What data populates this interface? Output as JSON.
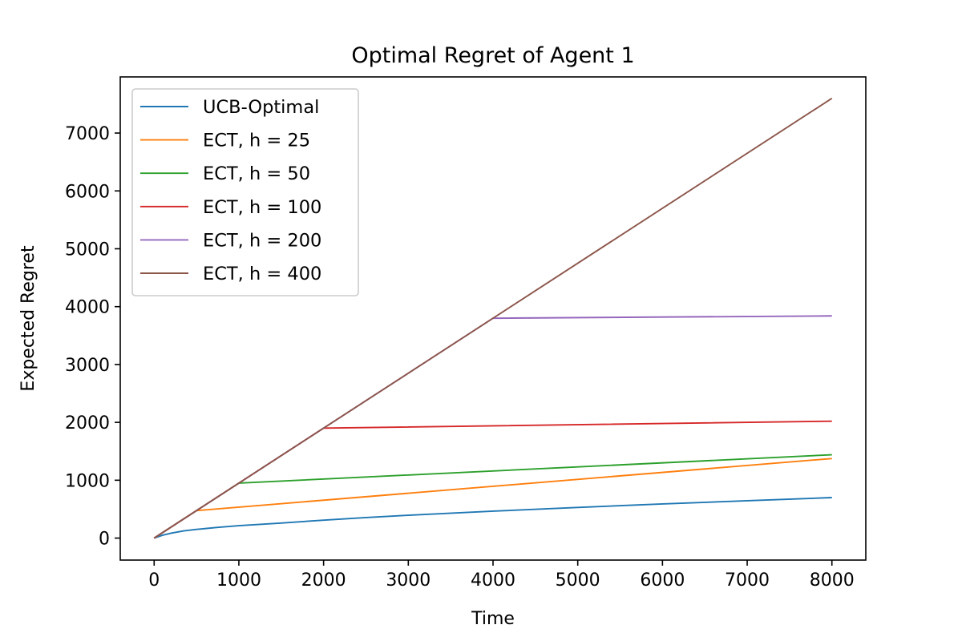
{
  "chart_data": {
    "type": "line",
    "title": "Optimal Regret of Agent 1",
    "xlabel": "Time",
    "ylabel": "Expected Regret",
    "xlim": [
      -400,
      8400
    ],
    "ylim": [
      -380,
      7970
    ],
    "xticks": [
      0,
      1000,
      2000,
      3000,
      4000,
      5000,
      6000,
      7000,
      8000
    ],
    "yticks": [
      0,
      1000,
      2000,
      3000,
      4000,
      5000,
      6000,
      7000
    ],
    "xtick_labels": [
      "0",
      "1000",
      "2000",
      "3000",
      "4000",
      "5000",
      "6000",
      "7000",
      "8000"
    ],
    "ytick_labels": [
      "0",
      "1000",
      "2000",
      "3000",
      "4000",
      "5000",
      "6000",
      "7000"
    ],
    "grid": false,
    "legend_position": "top-left",
    "series": [
      {
        "name": "UCB-Optimal",
        "color": "#1f77b4",
        "x": [
          0,
          100,
          200,
          350,
          500,
          750,
          1000,
          1500,
          2000,
          2500,
          3000,
          4000,
          5000,
          6000,
          7000,
          8000
        ],
        "y": [
          0,
          50,
          85,
          125,
          150,
          185,
          215,
          260,
          310,
          355,
          395,
          465,
          530,
          590,
          645,
          700
        ]
      },
      {
        "name": "ECT, h = 25",
        "color": "#ff7f0e",
        "x": [
          0,
          500,
          8000
        ],
        "y": [
          0,
          475,
          1375
        ]
      },
      {
        "name": "ECT, h = 50",
        "color": "#2ca02c",
        "x": [
          0,
          1000,
          8000
        ],
        "y": [
          0,
          950,
          1440
        ]
      },
      {
        "name": "ECT, h = 100",
        "color": "#d62728",
        "x": [
          0,
          2000,
          8000
        ],
        "y": [
          0,
          1900,
          2020
        ]
      },
      {
        "name": "ECT, h = 200",
        "color": "#9467bd",
        "x": [
          0,
          4000,
          8000
        ],
        "y": [
          0,
          3800,
          3840
        ]
      },
      {
        "name": "ECT, h = 400",
        "color": "#8c564b",
        "x": [
          0,
          8000
        ],
        "y": [
          0,
          7600
        ]
      }
    ]
  }
}
